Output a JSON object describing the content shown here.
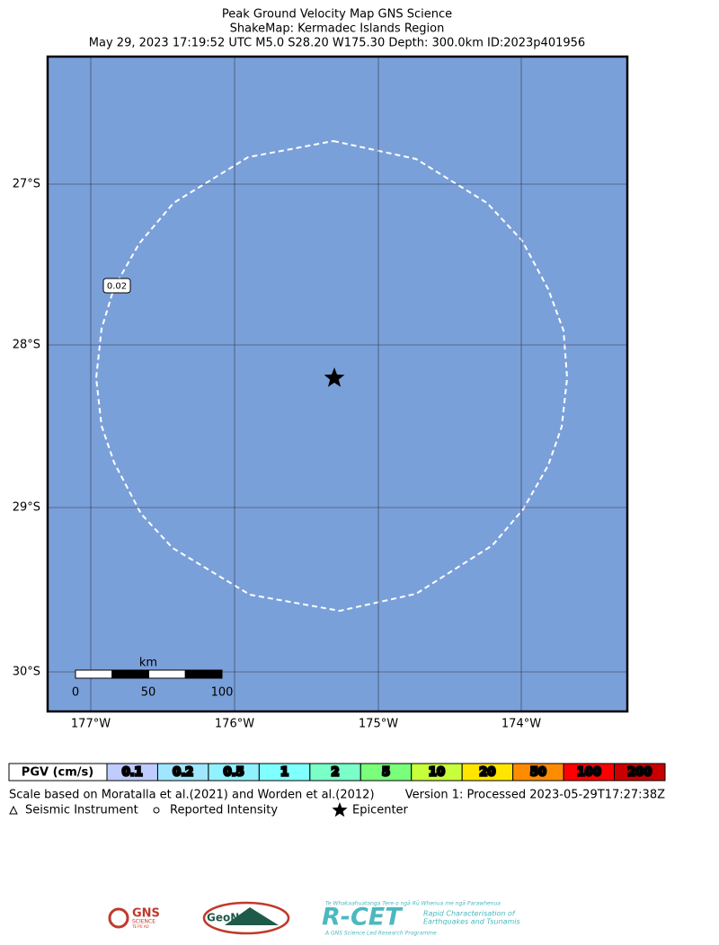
{
  "header": {
    "title": "Peak Ground Velocity Map GNS Science",
    "subtitle": "ShakeMap: Kermadec Islands Region",
    "event": "May 29, 2023 17:19:52 UTC M5.0 S28.20 W175.30 Depth: 300.0km ID:2023p401956"
  },
  "map": {
    "lat_labels": [
      "27°S",
      "28°S",
      "29°S",
      "30°S"
    ],
    "lon_labels": [
      "177°W",
      "176°W",
      "175°W",
      "174°W"
    ],
    "contour_label": "0.02",
    "scale_bar": {
      "unit": "km",
      "labels": [
        "0",
        "50",
        "100"
      ]
    }
  },
  "legend": {
    "title": "PGV (cm/s)",
    "bins": [
      {
        "label": "0.1",
        "color": "#bfccff"
      },
      {
        "label": "0.2",
        "color": "#a0e6ff"
      },
      {
        "label": "0.5",
        "color": "#90f2ff"
      },
      {
        "label": "1",
        "color": "#80ffff"
      },
      {
        "label": "2",
        "color": "#7affc8"
      },
      {
        "label": "5",
        "color": "#7aff7a"
      },
      {
        "label": "10",
        "color": "#c8ff3c"
      },
      {
        "label": "20",
        "color": "#ffe600"
      },
      {
        "label": "50",
        "color": "#ff8c00"
      },
      {
        "label": "100",
        "color": "#ff0000"
      },
      {
        "label": "200",
        "color": "#c80000"
      }
    ]
  },
  "footer": {
    "reference": "Scale based on Moratalla et al.(2021) and Worden et al.(2012)",
    "version": "Version 1: Processed 2023-05-29T17:27:38Z",
    "symbols": [
      "Seismic Instrument",
      "Reported Intensity",
      "Epicenter"
    ]
  },
  "logos": {
    "gns": {
      "name": "GNS",
      "sub": "SCIENCE",
      "maori": "TE PŪ AO"
    },
    "geonet": "GeoNet",
    "rcet": {
      "name": "R-CET",
      "maori": "Te Whakaahuatanga Tere o ngā Rū Whenua me ngā Parawhenua",
      "line1": "Rapid Characterisation of",
      "line2": "Earthquakes and Tsunamis",
      "tagline": "A GNS Science Led Research Programme"
    }
  }
}
